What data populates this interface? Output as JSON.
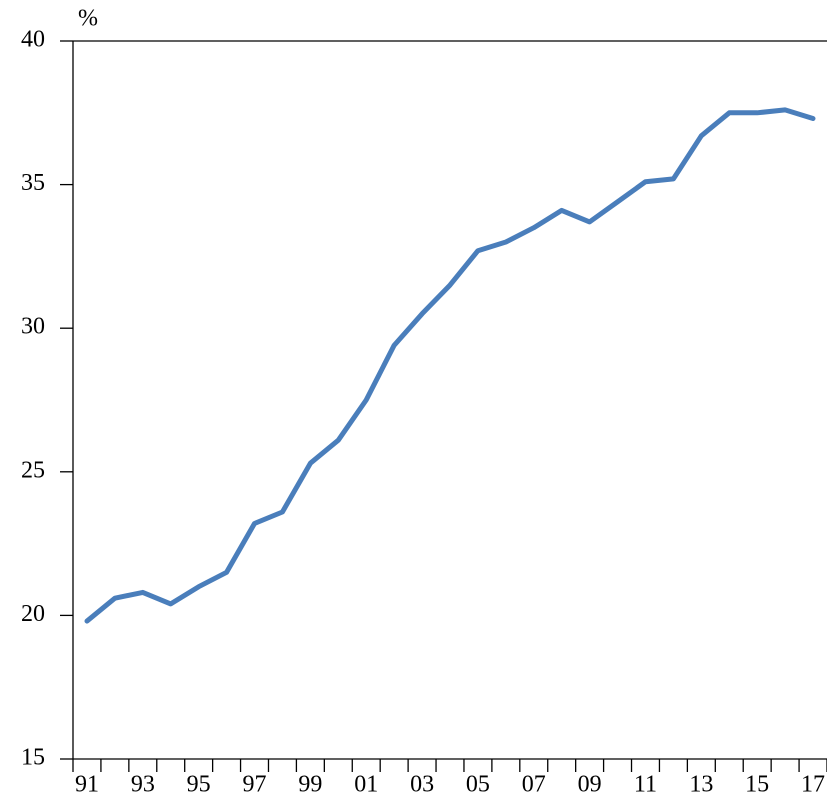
{
  "chart_data": {
    "type": "line",
    "y_label": "%",
    "categories": [
      "91",
      null,
      "93",
      null,
      "95",
      null,
      "97",
      null,
      "99",
      null,
      "01",
      null,
      "03",
      null,
      "05",
      null,
      "07",
      null,
      "09",
      null,
      "11",
      null,
      "13",
      null,
      "15",
      null,
      "17"
    ],
    "values": [
      19.8,
      20.6,
      20.8,
      20.4,
      21.0,
      21.5,
      23.2,
      23.6,
      25.3,
      26.1,
      27.5,
      29.4,
      30.5,
      31.5,
      32.7,
      33.0,
      33.5,
      34.1,
      33.7,
      34.4,
      35.1,
      35.2,
      36.7,
      37.5,
      37.5,
      37.6,
      37.3
    ],
    "color": "#4a7ebb",
    "ylim": [
      15,
      40
    ],
    "yticks": [
      15,
      20,
      25,
      30,
      35,
      40
    ],
    "grid": false
  }
}
